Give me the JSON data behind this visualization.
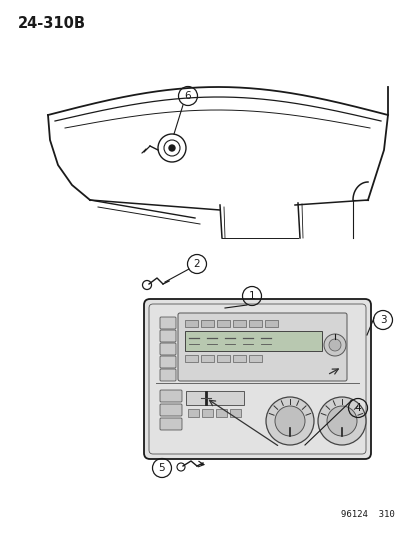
{
  "title_label": "24-310B",
  "footer_label": "96124  310",
  "bg_color": "#ffffff",
  "line_color": "#1a1a1a",
  "fig_width": 4.14,
  "fig_height": 5.33,
  "dpi": 100
}
